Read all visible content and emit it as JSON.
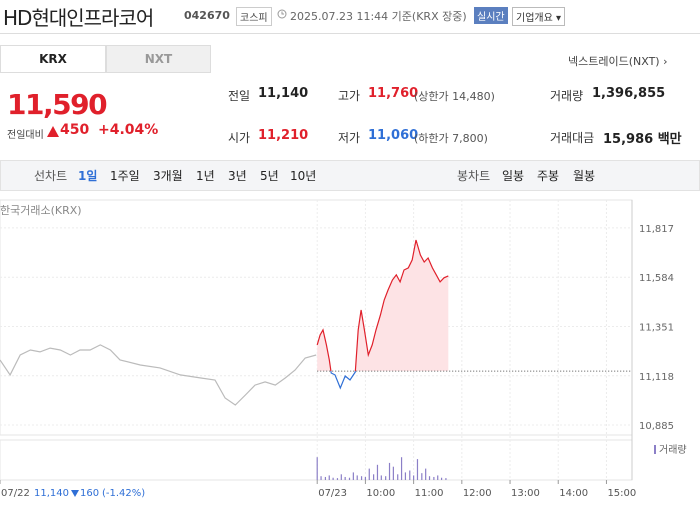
{
  "header": {
    "name": "HD현대인프라코어",
    "code": "042670",
    "market": "코스피",
    "datetime": "2025.07.23 11:44 기준(KRX 장중)",
    "realtime": "실시간",
    "company": "기업개요"
  },
  "tabs": [
    "KRX",
    "NXT"
  ],
  "nxt_link": "넥스트레이드(NXT)",
  "price": {
    "current": "11,590",
    "change_label": "전일대비",
    "change": "450",
    "rate": "+4.04%"
  },
  "stats": [
    [
      {
        "label": "전일",
        "value": "11,140"
      },
      {
        "label": "고가",
        "value": "11,760",
        "note": "(상한가 14,480)"
      },
      {
        "label": "거래량",
        "value": "1,396,855"
      }
    ],
    [
      {
        "label": "시가",
        "value": "11,210"
      },
      {
        "label": "저가",
        "value": "11,060",
        "note": "(하한가 7,800)"
      },
      {
        "label": "거래대금",
        "value": "15,986 백만"
      }
    ]
  ],
  "periods": {
    "line_label": "선차트",
    "line": [
      "1일",
      "1주일",
      "3개월",
      "1년",
      "3년",
      "5년",
      "10년"
    ],
    "candle_label": "봉차트",
    "candle": [
      "일봉",
      "주봉",
      "월봉"
    ]
  },
  "chart_data": {
    "type": "line",
    "source": "한국거래소(KRX)",
    "series": [
      {
        "color": "#bbbbbb",
        "x": [
          2.42,
          2.63,
          2.84,
          3.05,
          3.25,
          3.46,
          3.67,
          3.88,
          4.08,
          4.29,
          4.5,
          4.71,
          4.91,
          5.33,
          5.74,
          6.16,
          6.57,
          6.88,
          7.09,
          7.3,
          7.51,
          7.71,
          7.92,
          8.13,
          8.34,
          8.54,
          8.75,
          8.98
        ],
        "values": [
          11193,
          11122,
          11216,
          11240,
          11231,
          11249,
          11240,
          11216,
          11240,
          11240,
          11264,
          11240,
          11193,
          11169,
          11155,
          11122,
          11108,
          11098,
          11013,
          10980,
          11027,
          11074,
          11089,
          11074,
          11108,
          11145,
          11202,
          11216
        ]
      },
      {
        "color": "#e0202b",
        "below_color": "#2f6fd6",
        "fill": "#fde3e5",
        "x": [
          9.0,
          9.06,
          9.12,
          9.19,
          9.25,
          9.29,
          9.37,
          9.48,
          9.58,
          9.68,
          9.79,
          9.85,
          9.91,
          9.98,
          10.06,
          10.14,
          10.22,
          10.31,
          10.39,
          10.47,
          10.56,
          10.64,
          10.72,
          10.8,
          10.89,
          10.97,
          11.05,
          11.14,
          11.22,
          11.3,
          11.39,
          11.47,
          11.55,
          11.63,
          11.72
        ],
        "values": [
          11264,
          11311,
          11335,
          11264,
          11193,
          11131,
          11122,
          11060,
          11117,
          11098,
          11136,
          11335,
          11429,
          11335,
          11216,
          11264,
          11335,
          11405,
          11476,
          11524,
          11571,
          11595,
          11562,
          11618,
          11628,
          11666,
          11760,
          11689,
          11656,
          11675,
          11628,
          11595,
          11562,
          11581,
          11590
        ]
      }
    ],
    "reference": 11140,
    "xlim": [
      2.42,
      15.53
    ],
    "ylim": [
      10838,
      11949
    ],
    "yticks": [
      {
        "value": 10885,
        "label": "10,885"
      },
      {
        "value": 11118,
        "label": "11,118"
      },
      {
        "value": 11351,
        "label": "11,351"
      },
      {
        "value": 11584,
        "label": "11,584"
      },
      {
        "value": 11817,
        "label": "11,817"
      }
    ],
    "xticks": [
      {
        "value": 2.42,
        "label": "07/22"
      },
      {
        "value": 9,
        "label": "07/23"
      },
      {
        "value": 10,
        "label": "10:00"
      },
      {
        "value": 11,
        "label": "11:00"
      },
      {
        "value": 12,
        "label": "12:00"
      },
      {
        "value": 13,
        "label": "13:00"
      },
      {
        "value": 14,
        "label": "14:00"
      },
      {
        "value": 15,
        "label": "15:00"
      }
    ],
    "volume": {
      "name": "거래량",
      "color": "#8b7fc7",
      "ylim": [
        0,
        100
      ],
      "x": [
        9.0,
        9.08,
        9.17,
        9.25,
        9.33,
        9.42,
        9.5,
        9.58,
        9.67,
        9.75,
        9.83,
        9.92,
        10.0,
        10.08,
        10.17,
        10.25,
        10.33,
        10.42,
        10.5,
        10.58,
        10.67,
        10.75,
        10.83,
        10.92,
        11.0,
        11.08,
        11.17,
        11.25,
        11.33,
        11.42,
        11.5,
        11.58,
        11.67
      ],
      "values": [
        60,
        10,
        8,
        12,
        6,
        5,
        15,
        8,
        6,
        20,
        12,
        10,
        8,
        30,
        15,
        40,
        12,
        10,
        45,
        35,
        15,
        60,
        20,
        25,
        12,
        55,
        18,
        30,
        10,
        8,
        12,
        6,
        5
      ]
    },
    "prev_close": {
      "close": "11,140",
      "change": "160",
      "rate": "(-1.42%)"
    }
  }
}
